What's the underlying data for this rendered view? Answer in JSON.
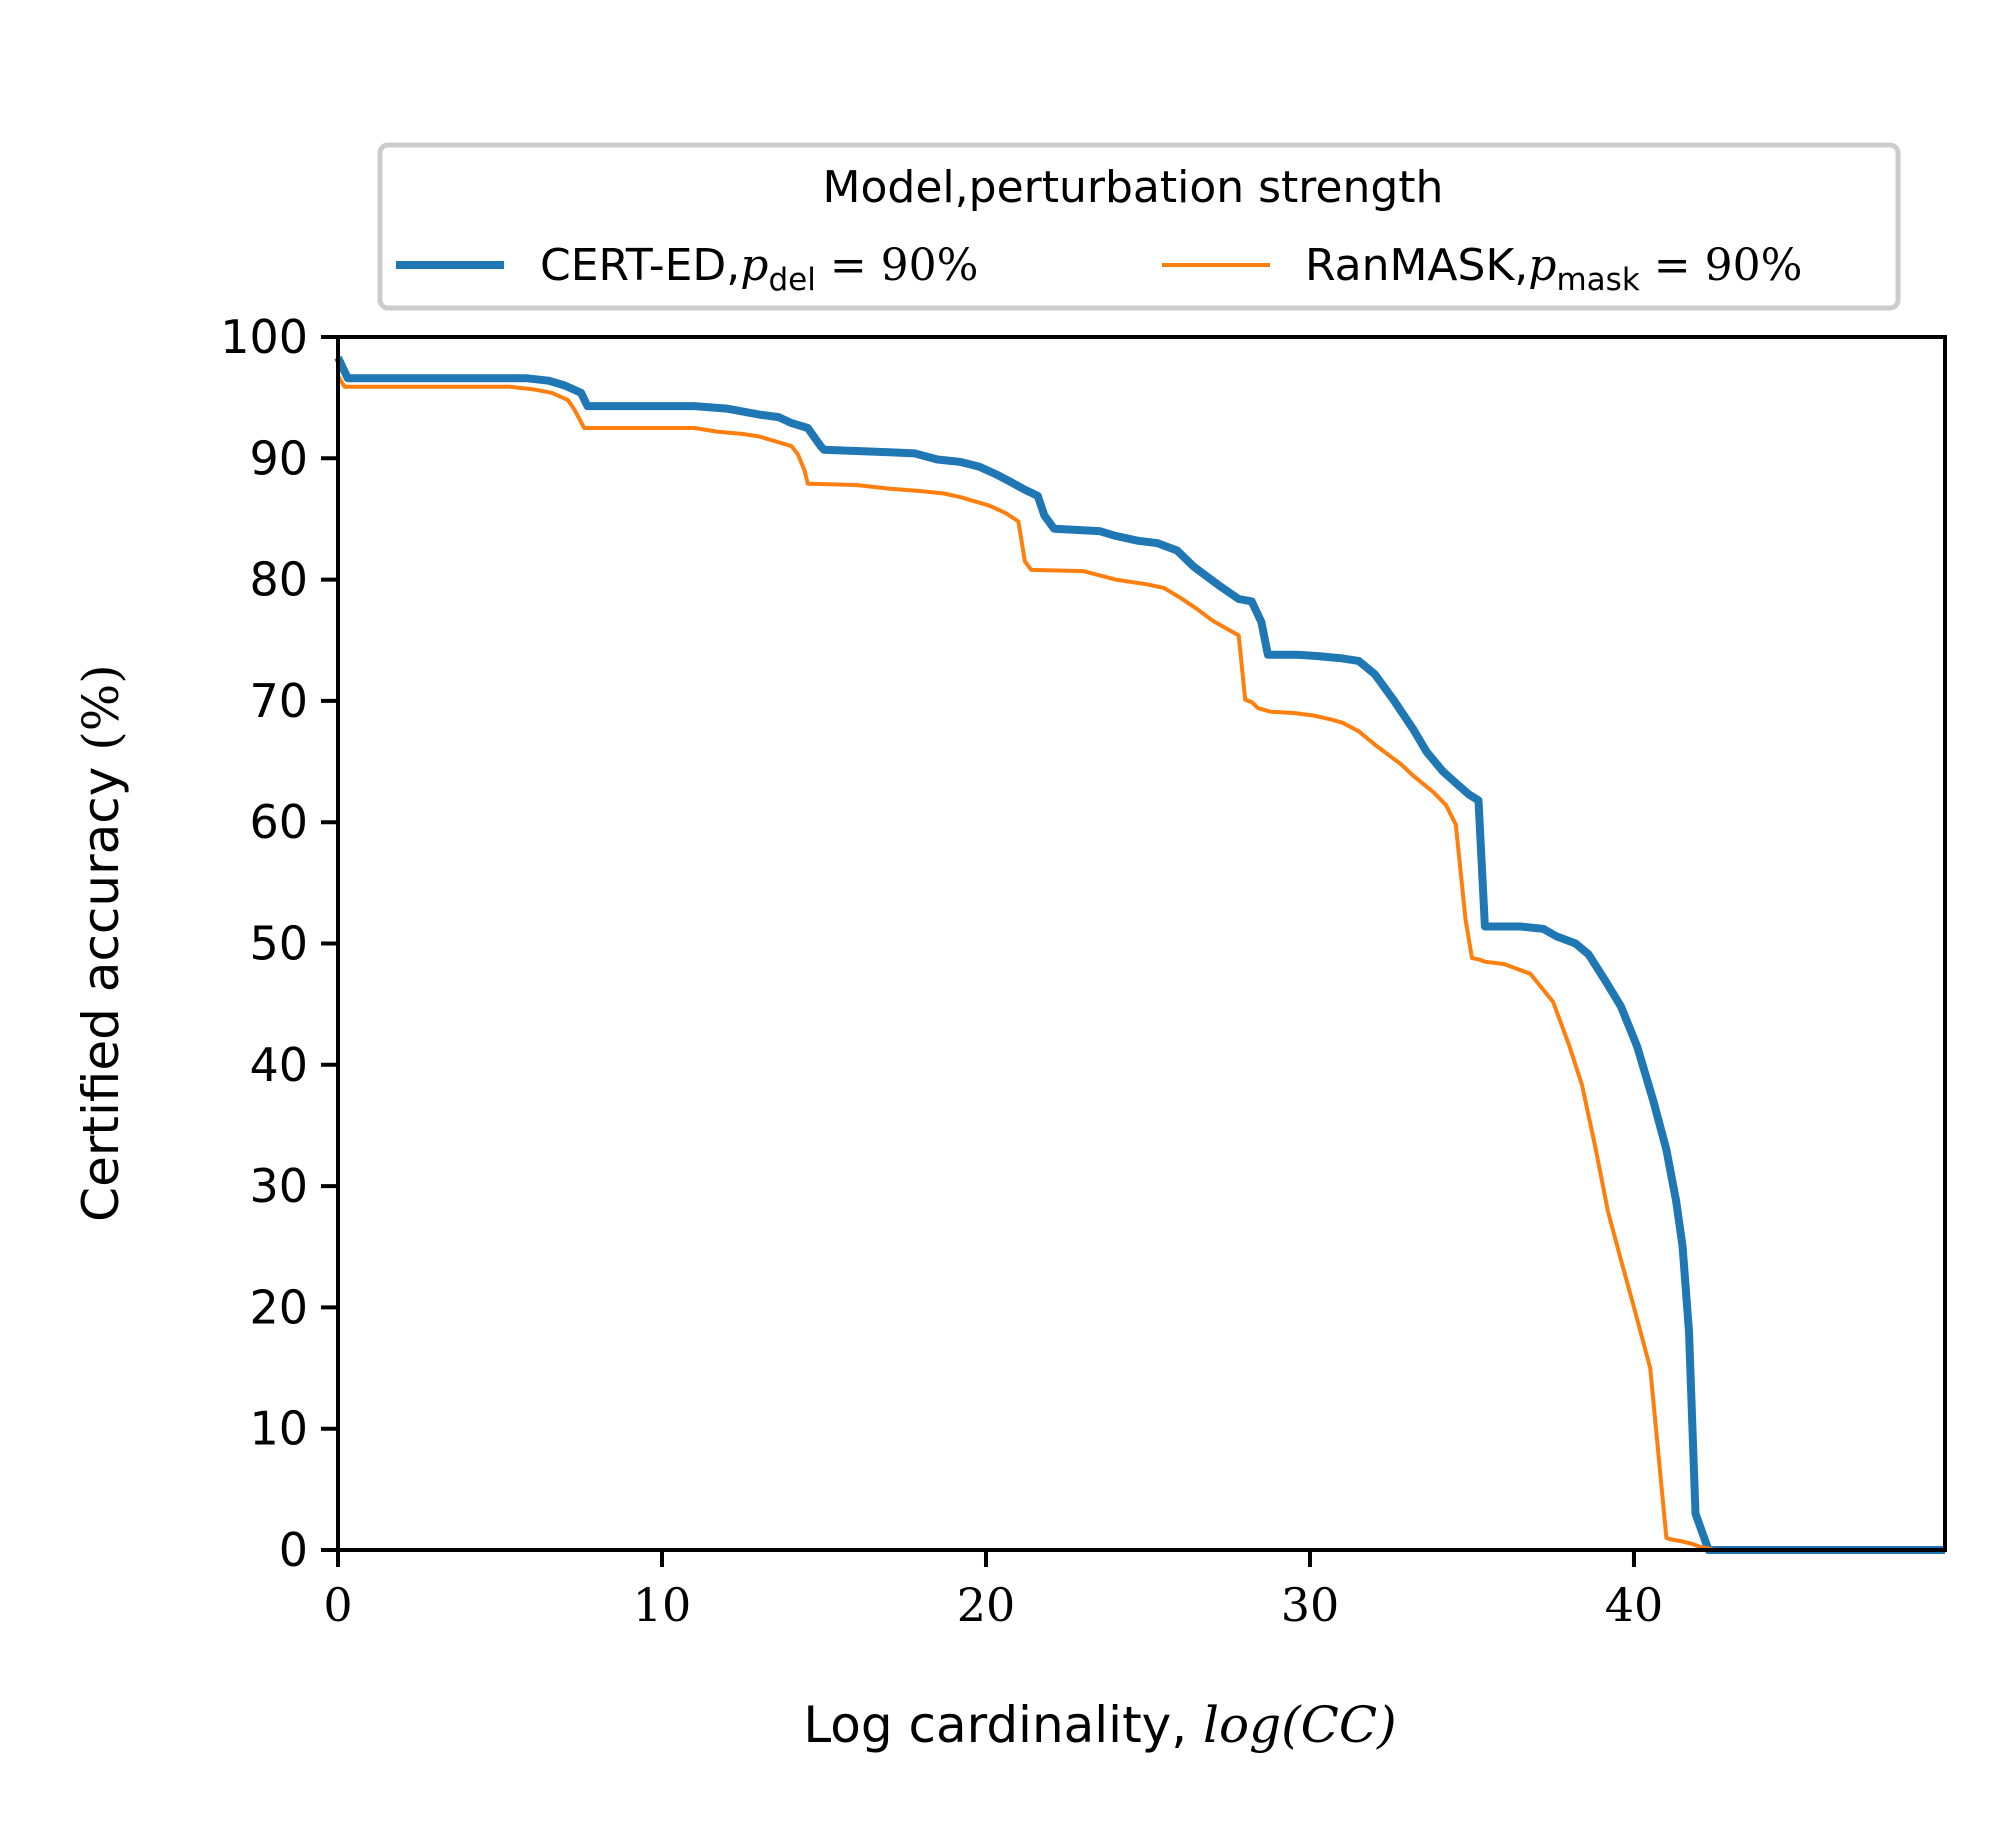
{
  "chart_data": {
    "type": "line",
    "xlabel": {
      "prefix": "Log cardinality, ",
      "math": "log(CC)"
    },
    "ylabel": {
      "prefix": "Certified accuracy ",
      "math": "(%)"
    },
    "xlim": [
      0,
      49.6
    ],
    "ylim": [
      0,
      100
    ],
    "xticks": [
      0,
      10,
      20,
      30,
      40
    ],
    "yticks": [
      0,
      10,
      20,
      30,
      40,
      50,
      60,
      70,
      80,
      90,
      100
    ],
    "grid": false,
    "legend": {
      "title": "Model,perturbation strength",
      "placement": "top-center-outside",
      "entries": [
        {
          "name": "CERT-ED,",
          "math_var": "p",
          "math_sub": "del",
          "math_rest": " = 90%"
        },
        {
          "name": "RanMASK,",
          "math_var": "p",
          "math_sub": "mask",
          "math_rest": " = 90%"
        }
      ]
    },
    "series": [
      {
        "name": "CERT-ED, p_del = 90%",
        "color": "#1f77b4",
        "linewidth": "thick",
        "x": [
          0,
          0.3,
          5.8,
          6.5,
          7.0,
          7.5,
          7.7,
          11.0,
          12.0,
          13.0,
          13.6,
          14.0,
          14.5,
          14.9,
          15.0,
          16.0,
          17.0,
          17.8,
          18.5,
          19.2,
          19.8,
          20.3,
          20.8,
          21.2,
          21.6,
          21.8,
          22.1,
          23.5,
          24.0,
          24.7,
          25.3,
          25.9,
          26.4,
          27.2,
          27.8,
          28.2,
          28.5,
          28.7,
          29.6,
          30.2,
          31.0,
          31.5,
          32.0,
          32.6,
          33.2,
          33.6,
          34.1,
          34.6,
          34.9,
          35.2,
          35.4,
          36.5,
          37.2,
          37.6,
          38.2,
          38.6,
          39.1,
          39.6,
          40.1,
          40.6,
          41.0,
          41.3,
          41.5,
          41.7,
          41.9,
          42.3,
          49.6
        ],
        "y": [
          98.3,
          96.6,
          96.6,
          96.4,
          96.0,
          95.4,
          94.3,
          94.3,
          94.1,
          93.6,
          93.4,
          92.9,
          92.5,
          91.0,
          90.7,
          90.6,
          90.5,
          90.4,
          89.9,
          89.7,
          89.3,
          88.7,
          88.0,
          87.4,
          86.9,
          85.3,
          84.2,
          84.0,
          83.6,
          83.2,
          83.0,
          82.4,
          81.1,
          79.5,
          78.4,
          78.2,
          76.5,
          73.8,
          73.8,
          73.7,
          73.5,
          73.3,
          72.2,
          70.0,
          67.6,
          65.8,
          64.2,
          63.0,
          62.3,
          61.8,
          51.4,
          51.4,
          51.2,
          50.6,
          50.0,
          49.1,
          47.0,
          44.8,
          41.5,
          37.0,
          33.0,
          28.8,
          25.0,
          18.0,
          3.0,
          0,
          0
        ]
      },
      {
        "name": "RanMASK, p_mask = 90%",
        "color": "#ff7f0e",
        "linewidth": "thin",
        "x": [
          0,
          0.2,
          5.3,
          6.0,
          6.6,
          7.1,
          7.3,
          7.6,
          11.0,
          11.7,
          12.5,
          13.0,
          13.5,
          14.0,
          14.2,
          14.4,
          14.5,
          16.0,
          17.0,
          18.0,
          18.7,
          19.2,
          19.6,
          20.1,
          20.6,
          21.0,
          21.2,
          21.4,
          23.0,
          24.0,
          25.0,
          25.5,
          26.0,
          26.5,
          27.0,
          27.4,
          27.8,
          28.0,
          28.2,
          28.4,
          28.8,
          29.5,
          30.1,
          30.6,
          31.0,
          31.5,
          32.0,
          32.8,
          33.2,
          33.8,
          34.2,
          34.5,
          34.8,
          35.0,
          35.2,
          35.4,
          36.0,
          36.8,
          37.5,
          38.0,
          38.4,
          38.8,
          39.2,
          39.6,
          40.0,
          40.5,
          41.0,
          41.1,
          41.5,
          41.8,
          42.0,
          42.5,
          49.6
        ],
        "y": [
          96.8,
          95.9,
          95.9,
          95.7,
          95.4,
          94.8,
          94.0,
          92.5,
          92.5,
          92.2,
          92.0,
          91.8,
          91.4,
          91.0,
          90.3,
          89.0,
          87.9,
          87.8,
          87.5,
          87.3,
          87.1,
          86.8,
          86.5,
          86.1,
          85.5,
          84.8,
          81.5,
          80.8,
          80.7,
          80.0,
          79.6,
          79.3,
          78.5,
          77.6,
          76.6,
          76.0,
          75.4,
          70.1,
          69.9,
          69.4,
          69.1,
          69.0,
          68.8,
          68.5,
          68.2,
          67.5,
          66.4,
          64.8,
          63.8,
          62.5,
          61.4,
          59.8,
          52.0,
          48.8,
          48.7,
          48.5,
          48.3,
          47.5,
          45.2,
          41.6,
          38.3,
          33.3,
          27.9,
          23.9,
          20.0,
          15.0,
          1.0,
          0.9,
          0.7,
          0.5,
          0.3,
          0,
          0
        ]
      }
    ]
  }
}
